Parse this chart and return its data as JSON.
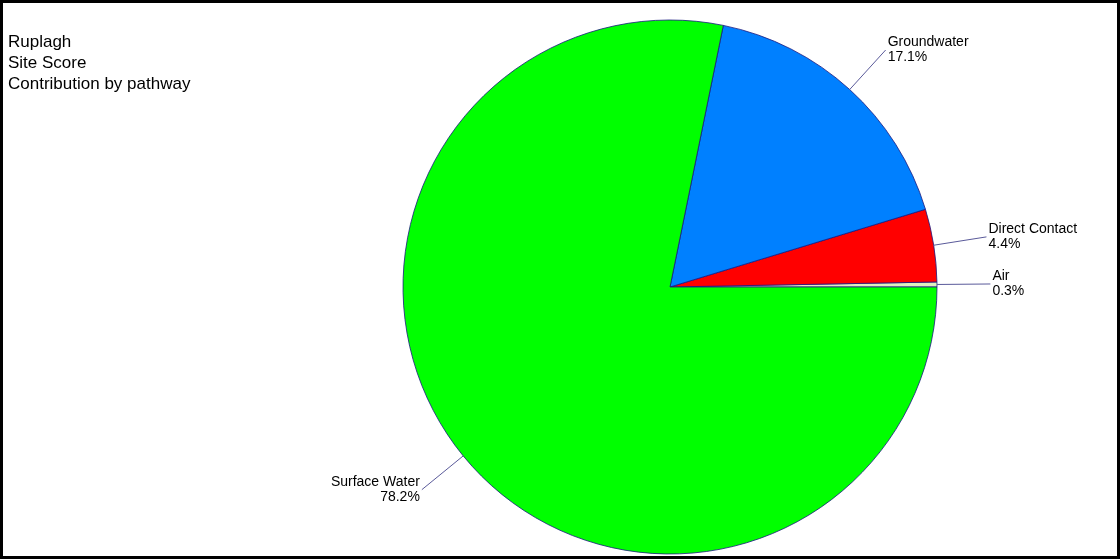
{
  "chart_data": {
    "type": "pie",
    "title": "Ruplagh\nSite Score\nContribution by pathway",
    "categories": [
      "Air",
      "Direct Contact",
      "Groundwater",
      "Surface Water"
    ],
    "values": [
      0.3,
      4.4,
      17.1,
      78.2
    ],
    "value_labels": [
      "0.3%",
      "4.4%",
      "17.1%",
      "78.2%"
    ],
    "colors": [
      "#e0f0c0",
      "#ff0000",
      "#0080ff",
      "#00ff00"
    ]
  }
}
